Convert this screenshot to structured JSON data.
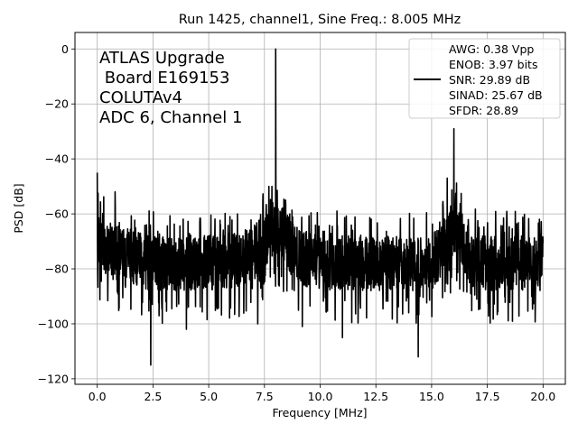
{
  "chart_data": {
    "type": "line",
    "title": "Run 1425, channel1, Sine Freq.: 8.005 MHz",
    "xlabel": "Frequency [MHz]",
    "ylabel": "PSD [dB]",
    "xlim": [
      -1.0,
      21.0
    ],
    "ylim": [
      -122,
      6
    ],
    "xticks": [
      0.0,
      2.5,
      5.0,
      7.5,
      10.0,
      12.5,
      15.0,
      17.5,
      20.0
    ],
    "xtick_labels": [
      "0.0",
      "2.5",
      "5.0",
      "7.5",
      "10.0",
      "12.5",
      "15.0",
      "17.5",
      "20.0"
    ],
    "yticks": [
      0,
      -20,
      -40,
      -60,
      -80,
      -100,
      -120
    ],
    "ytick_labels": [
      "0",
      "−20",
      "−40",
      "−60",
      "−80",
      "−100",
      "−120"
    ],
    "grid": true,
    "annotation": [
      "ATLAS Upgrade",
      " Board E169153",
      "COLUTAv4",
      "ADC 6, Channel 1"
    ],
    "legend": {
      "placement": "top-right",
      "lines": [
        "AWG: 0.38 Vpp",
        "ENOB: 3.97 bits",
        "SNR: 29.89 dB",
        "SINAD: 25.67 dB",
        "SFDR: 28.89"
      ]
    },
    "color": "#000000",
    "series": [
      {
        "noise_floor_db": -78,
        "frequency_range": [
          0.0,
          20.0
        ],
        "peaks": [
          {
            "x": 8.005,
            "y": 0
          },
          {
            "x": 16.0,
            "y": -29
          },
          {
            "x": 0.0,
            "y": -45
          },
          {
            "x": 15.7,
            "y": -47
          },
          {
            "x": 7.7,
            "y": -50
          },
          {
            "x": 0.8,
            "y": -52
          }
        ],
        "dips": [
          {
            "x": 2.4,
            "y": -115
          },
          {
            "x": 14.4,
            "y": -112
          },
          {
            "x": 11.0,
            "y": -105
          },
          {
            "x": 4.0,
            "y": -102
          },
          {
            "x": 9.2,
            "y": -101
          },
          {
            "x": 7.2,
            "y": -100
          }
        ]
      }
    ]
  }
}
